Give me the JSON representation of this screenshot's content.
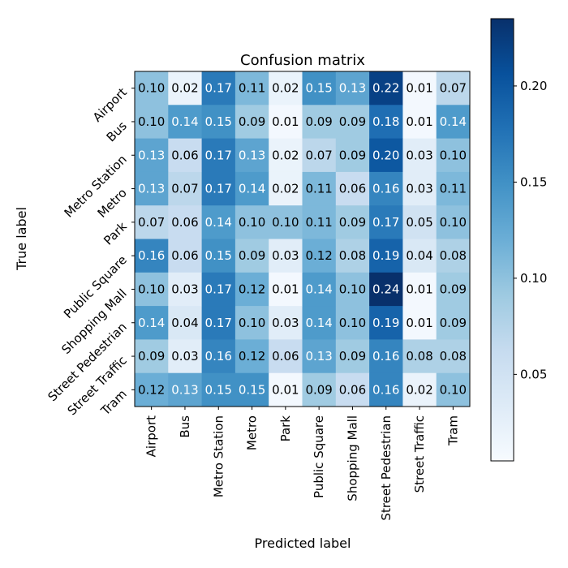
{
  "chart_data": {
    "type": "heatmap",
    "title": "Confusion matrix",
    "xlabel": "Predicted label",
    "ylabel": "True label",
    "x_categories": [
      "Airport",
      "Bus",
      "Metro Station",
      "Metro",
      "Park",
      "Public Square",
      "Shopping Mall",
      "Street Pedestrian",
      "Street Traffic",
      "Tram"
    ],
    "y_categories": [
      "Airport",
      "Bus",
      "Metro Station",
      "Metro",
      "Park",
      "Public Square",
      "Shopping Mall",
      "Street Pedestrian",
      "Street Traffic",
      "Tram"
    ],
    "values": [
      [
        0.1,
        0.02,
        0.17,
        0.11,
        0.02,
        0.15,
        0.13,
        0.22,
        0.01,
        0.07
      ],
      [
        0.1,
        0.14,
        0.15,
        0.09,
        0.01,
        0.09,
        0.09,
        0.18,
        0.01,
        0.14
      ],
      [
        0.13,
        0.06,
        0.17,
        0.13,
        0.02,
        0.07,
        0.09,
        0.2,
        0.03,
        0.1
      ],
      [
        0.13,
        0.07,
        0.17,
        0.14,
        0.02,
        0.11,
        0.06,
        0.16,
        0.03,
        0.11
      ],
      [
        0.07,
        0.06,
        0.14,
        0.1,
        0.1,
        0.11,
        0.09,
        0.17,
        0.05,
        0.1
      ],
      [
        0.16,
        0.06,
        0.15,
        0.09,
        0.03,
        0.12,
        0.08,
        0.19,
        0.04,
        0.08
      ],
      [
        0.1,
        0.03,
        0.17,
        0.12,
        0.01,
        0.14,
        0.1,
        0.24,
        0.01,
        0.09
      ],
      [
        0.14,
        0.04,
        0.17,
        0.1,
        0.03,
        0.14,
        0.1,
        0.19,
        0.01,
        0.09
      ],
      [
        0.09,
        0.03,
        0.16,
        0.12,
        0.06,
        0.13,
        0.09,
        0.16,
        0.08,
        0.08
      ],
      [
        0.12,
        0.13,
        0.15,
        0.15,
        0.01,
        0.09,
        0.06,
        0.16,
        0.02,
        0.1
      ]
    ],
    "value_format": "2 decimals",
    "colormap": "Blues",
    "colorbar": {
      "min": 0.005,
      "max": 0.235,
      "ticks": [
        "0.05",
        "0.10",
        "0.15",
        "0.20"
      ],
      "tick_values": [
        0.05,
        0.1,
        0.15,
        0.2
      ]
    },
    "text_color_light": "#ffffff",
    "text_color_dark": "#000000",
    "grid": false,
    "legend": "colorbar right"
  }
}
